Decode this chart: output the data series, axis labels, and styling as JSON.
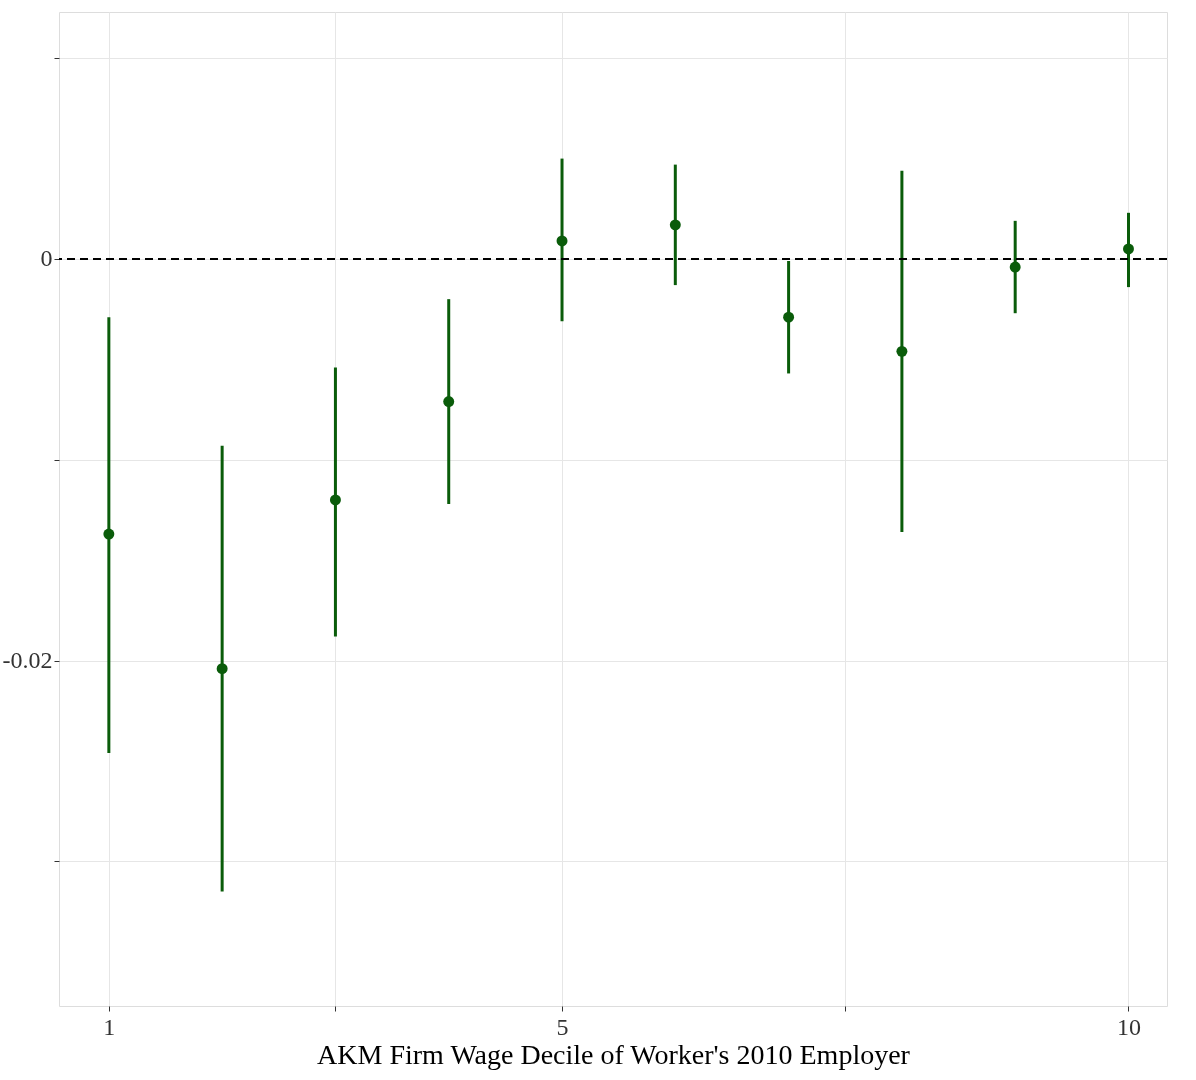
{
  "chart_data": {
    "type": "scatter",
    "xlabel": "AKM Firm Wage Decile of Worker's 2010 Employer",
    "x": [
      1,
      2,
      3,
      4,
      5,
      6,
      7,
      8,
      9,
      10
    ],
    "values": [
      -0.0137,
      -0.0204,
      -0.012,
      -0.0071,
      0.0009,
      0.0017,
      -0.0029,
      -0.0046,
      -0.0004,
      0.0005
    ],
    "errors": [
      [
        -0.0246,
        -0.0029
      ],
      [
        -0.0315,
        -0.0093
      ],
      [
        -0.0188,
        -0.0054
      ],
      [
        -0.0122,
        -0.002
      ],
      [
        -0.0031,
        0.005
      ],
      [
        -0.0013,
        0.0047
      ],
      [
        -0.0057,
        -0.0001
      ],
      [
        -0.0136,
        0.0044
      ],
      [
        -0.0027,
        0.0019
      ],
      [
        -0.0014,
        0.0023
      ]
    ],
    "color": "#0a5c0a",
    "marker": "circle",
    "xlim": [
      0.56,
      10.34
    ],
    "xticks": [
      1,
      {
        "value": 3,
        "label": null
      },
      5,
      {
        "value": 7.5,
        "label": null
      },
      10
    ],
    "ylim": [
      -0.0372,
      0.0123
    ],
    "yticks": [
      {
        "value": -0.03,
        "label": null
      },
      -0.02,
      {
        "value": -0.01,
        "label": null
      },
      0,
      {
        "value": 0.01,
        "label": null
      }
    ],
    "ref_lines": [
      {
        "axis": "y",
        "value": 0,
        "color": "#000000",
        "line_style": "dashed"
      }
    ],
    "grid": true
  }
}
